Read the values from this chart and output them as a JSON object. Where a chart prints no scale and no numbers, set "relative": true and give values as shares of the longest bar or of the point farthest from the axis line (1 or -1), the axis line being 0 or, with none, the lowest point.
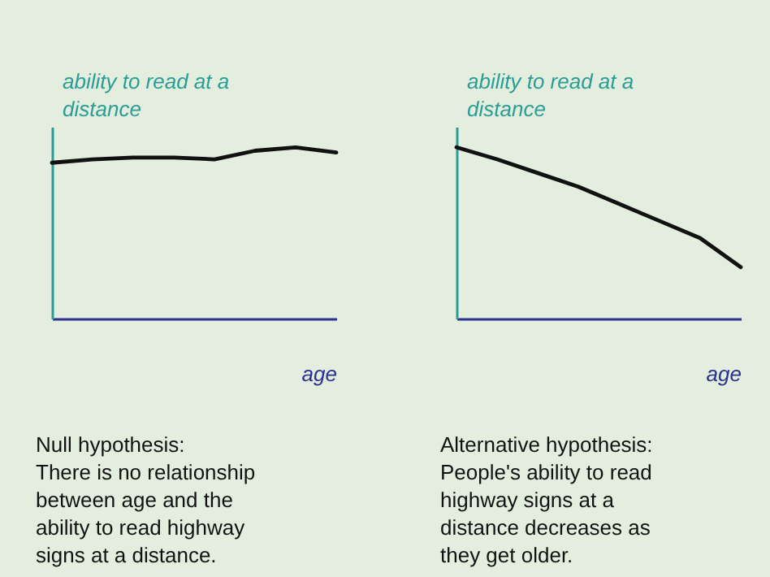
{
  "chart_data": [
    {
      "type": "line",
      "relative": true,
      "xlabel": "age",
      "ylabel": "ability to read at a distance",
      "categories": [
        null,
        null,
        null,
        null,
        null,
        null,
        null,
        null
      ],
      "series": [
        {
          "color": "#111111",
          "values": [
            0.91,
            0.93,
            0.94,
            0.94,
            0.93,
            0.98,
            1.0,
            0.97
          ]
        }
      ],
      "annotations": [
        "Null hypothesis:",
        "There is no relationship between age and the ability to read highway signs at a distance."
      ]
    },
    {
      "type": "line",
      "relative": true,
      "xlabel": "age",
      "ylabel": "ability to read at a distance",
      "categories": [
        null,
        null,
        null,
        null,
        null,
        null,
        null,
        null
      ],
      "series": [
        {
          "color": "#111111",
          "values": [
            1.0,
            0.93,
            0.85,
            0.77,
            0.67,
            0.57,
            0.47,
            0.3
          ]
        }
      ],
      "annotations": [
        "Alternative hypothesis:",
        "People's ability to read highway signs at a distance decreases as they get older."
      ]
    }
  ]
}
